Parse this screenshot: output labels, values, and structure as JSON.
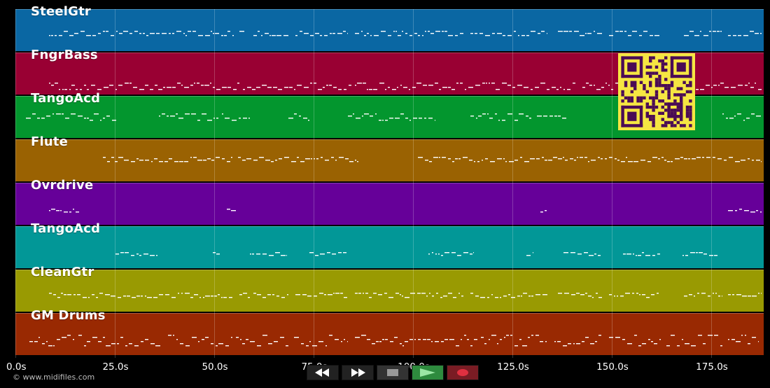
{
  "tracks": [
    {
      "label": "SteelGtr",
      "color": "#0a67a3"
    },
    {
      "label": "FngrBass",
      "color": "#990033"
    },
    {
      "label": "TangoAcd",
      "color": "#03962e"
    },
    {
      "label": "Flute",
      "color": "#9a6202"
    },
    {
      "label": "Ovrdrive",
      "color": "#660099"
    },
    {
      "label": "TangoAcd",
      "color": "#029797"
    },
    {
      "label": "CleanGtr",
      "color": "#999a02"
    },
    {
      "label": "GM Drums",
      "color": "#992902"
    }
  ],
  "axis": {
    "ticks": [
      "0.0s",
      "25.0s",
      "50.0s",
      "75.0s",
      "100.0s",
      "125.0s",
      "150.0s",
      "175.0s"
    ]
  },
  "credit": "© www.midifiles.com",
  "transport": {
    "buttons": [
      "rewind-icon",
      "fast-forward-icon",
      "stop-icon",
      "play-icon",
      "record-icon"
    ]
  },
  "qr_color": "#4a0b55",
  "qr_bg": "#f5e642"
}
